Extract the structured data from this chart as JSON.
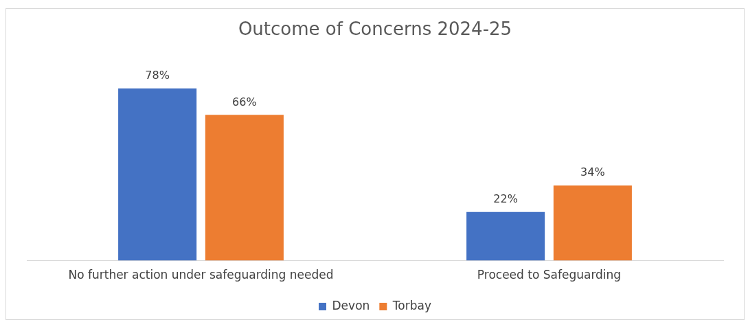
{
  "chart_data": {
    "type": "bar",
    "title": "Outcome of Concerns 2024-25",
    "categories": [
      "No further action under safeguarding needed",
      "Proceed to Safeguarding"
    ],
    "series": [
      {
        "name": "Devon",
        "color": "#4472c4",
        "values": [
          78,
          22
        ],
        "value_labels": [
          "78%",
          "22%"
        ]
      },
      {
        "name": "Torbay",
        "color": "#ed7d31",
        "values": [
          66,
          34
        ],
        "value_labels": [
          "66%",
          "34%"
        ]
      }
    ],
    "legend": "bottom",
    "grid": false
  }
}
